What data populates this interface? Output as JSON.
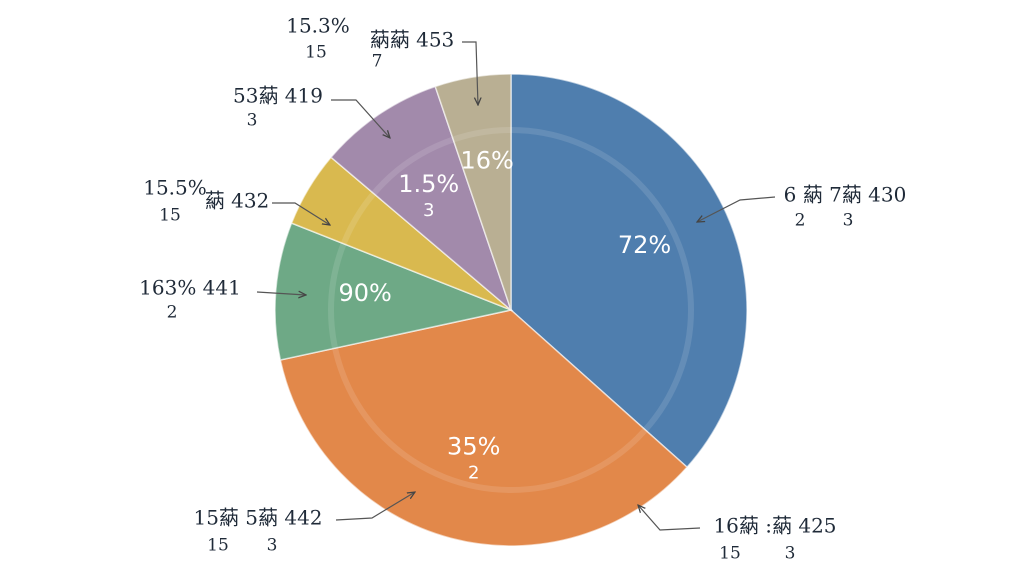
{
  "chart_data": {
    "type": "pie",
    "values": [
      36.6,
      35,
      9.4,
      5.2,
      8.6,
      5.2
    ],
    "colors": [
      "#4f7eae",
      "#e2884a",
      "#6ea986",
      "#d9b94f",
      "#a28aab",
      "#b9af93"
    ],
    "slice_labels": [
      [
        "72%"
      ],
      [
        "35%",
        "2"
      ],
      [
        "90%"
      ],
      [],
      [
        "1.5%",
        "3"
      ],
      [
        "16%"
      ]
    ],
    "callouts": [
      [
        "6 蒳 7蒳 430",
        "2",
        "3"
      ],
      [
        "16蒳 :蒳 425",
        "15",
        "3"
      ],
      [
        "15蒳 5蒳 442",
        "15",
        "3"
      ],
      [
        "163% 441",
        "2"
      ],
      [
        "15.5%",
        "15",
        "蒳 432"
      ],
      [
        "53蒳 419",
        "3"
      ],
      [
        "15.3%",
        "15",
        "蒳蒳 453",
        "7"
      ]
    ]
  }
}
